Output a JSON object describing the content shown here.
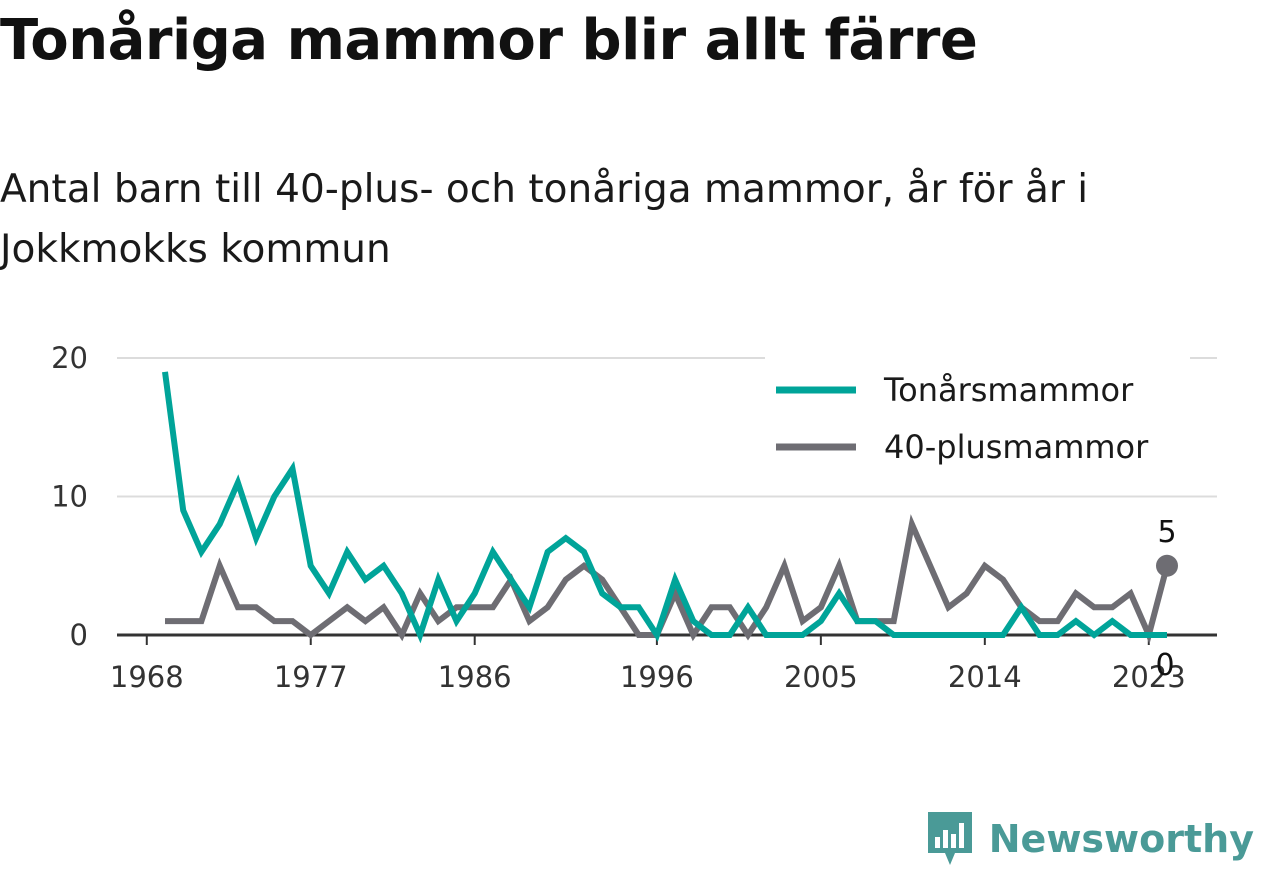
{
  "title": "Tonåriga mammor blir allt färre",
  "subtitle": "Antal barn till 40-plus- och tonåriga mammor, år för år i Jokkmokks kommun",
  "brand": "Newsworthy",
  "colors": {
    "teen": "#00a499",
    "forty_plus": "#6e6d73",
    "grid": "#dcdcdc",
    "axis": "#333333",
    "brand": "#4a9a97"
  },
  "chart_data": {
    "type": "line",
    "x": [
      1969,
      1970,
      1971,
      1972,
      1973,
      1974,
      1975,
      1976,
      1977,
      1978,
      1979,
      1980,
      1981,
      1982,
      1983,
      1984,
      1985,
      1986,
      1987,
      1988,
      1989,
      1990,
      1991,
      1992,
      1993,
      1994,
      1995,
      1996,
      1997,
      1998,
      1999,
      2000,
      2001,
      2002,
      2003,
      2004,
      2005,
      2006,
      2007,
      2008,
      2009,
      2010,
      2011,
      2012,
      2013,
      2014,
      2015,
      2016,
      2017,
      2018,
      2019,
      2020,
      2021,
      2022,
      2023,
      2024
    ],
    "series": [
      {
        "name": "Tonårsmammor",
        "color": "#00a499",
        "values": [
          19,
          9,
          6,
          8,
          11,
          7,
          10,
          12,
          5,
          3,
          6,
          4,
          5,
          3,
          0,
          4,
          1,
          3,
          6,
          4,
          2,
          6,
          7,
          6,
          3,
          2,
          2,
          0,
          4,
          1,
          0,
          0,
          2,
          0,
          0,
          0,
          1,
          3,
          1,
          1,
          0,
          0,
          0,
          0,
          0,
          0,
          0,
          2,
          0,
          0,
          1,
          0,
          1,
          0,
          0,
          0
        ]
      },
      {
        "name": "40-plusmammor",
        "color": "#6e6d73",
        "values": [
          1,
          1,
          1,
          5,
          2,
          2,
          1,
          1,
          0,
          1,
          2,
          1,
          2,
          0,
          3,
          1,
          2,
          2,
          2,
          4,
          1,
          2,
          4,
          5,
          4,
          2,
          0,
          0,
          3,
          0,
          2,
          2,
          0,
          2,
          5,
          1,
          2,
          5,
          1,
          1,
          1,
          8,
          5,
          2,
          3,
          5,
          4,
          2,
          1,
          1,
          3,
          2,
          2,
          3,
          0,
          5
        ]
      }
    ],
    "xticks": [
      1968,
      1977,
      1986,
      1996,
      2005,
      2014,
      2023
    ],
    "yticks": [
      0,
      10,
      20
    ],
    "xlim": [
      1968,
      2024
    ],
    "ylim": [
      0,
      20
    ],
    "xlabel": "",
    "ylabel": "",
    "grid": true,
    "legend": "top-right",
    "end_labels": [
      {
        "series": "40-plusmammor",
        "x": 2024,
        "value": 5,
        "text": "5"
      },
      {
        "series": "Tonårsmammor",
        "x": 2024,
        "value": 0,
        "text": "0"
      }
    ]
  }
}
